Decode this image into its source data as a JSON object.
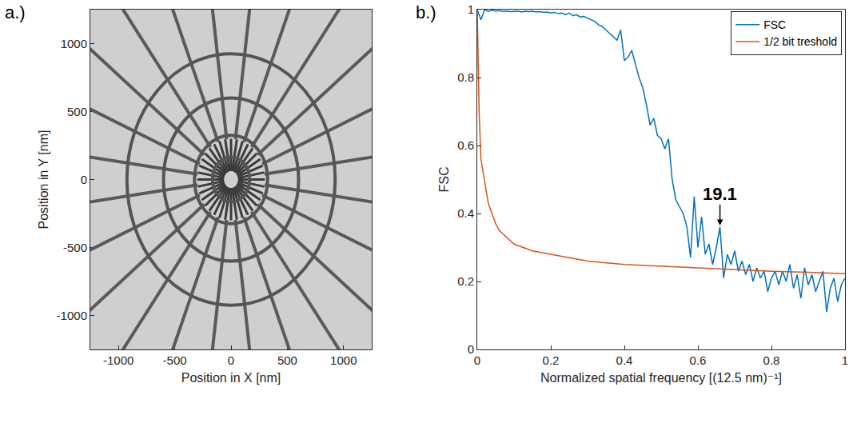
{
  "chart_data": [
    {
      "type": "image",
      "panel_label": "a.)",
      "x_label": "Position in X [nm]",
      "y_label": "Position in Y [nm]",
      "xlim": [
        -1250,
        1250
      ],
      "ylim": [
        -1250,
        1250
      ],
      "xticks": [
        -1000,
        -500,
        0,
        500,
        1000
      ],
      "yticks": [
        -1000,
        -500,
        0,
        500,
        1000
      ],
      "grid": false
    },
    {
      "type": "line",
      "panel_label": "b.)",
      "x_label": "Normalized spatial frequency [(12.5 nm)⁻¹]",
      "y_label": "FSC",
      "xlim": [
        0,
        1
      ],
      "ylim": [
        0,
        1
      ],
      "xticks": [
        0,
        0.2,
        0.4,
        0.6,
        0.8,
        1
      ],
      "yticks": [
        0,
        0.2,
        0.4,
        0.6,
        0.8,
        1
      ],
      "grid": false,
      "legend": "upper right",
      "series": [
        {
          "name": "FSC",
          "color": "#0072bd",
          "x": [
            0,
            0.01,
            0.02,
            0.03,
            0.04,
            0.05,
            0.06,
            0.07,
            0.08,
            0.09,
            0.1,
            0.11,
            0.12,
            0.13,
            0.14,
            0.15,
            0.16,
            0.17,
            0.18,
            0.19,
            0.2,
            0.21,
            0.22,
            0.23,
            0.24,
            0.25,
            0.26,
            0.27,
            0.28,
            0.29,
            0.3,
            0.31,
            0.32,
            0.33,
            0.34,
            0.35,
            0.36,
            0.37,
            0.38,
            0.39,
            0.4,
            0.41,
            0.42,
            0.43,
            0.44,
            0.45,
            0.46,
            0.47,
            0.48,
            0.49,
            0.5,
            0.51,
            0.52,
            0.53,
            0.54,
            0.55,
            0.56,
            0.57,
            0.58,
            0.59,
            0.6,
            0.61,
            0.62,
            0.63,
            0.64,
            0.65,
            0.66,
            0.67,
            0.68,
            0.69,
            0.7,
            0.71,
            0.72,
            0.73,
            0.74,
            0.75,
            0.76,
            0.77,
            0.78,
            0.79,
            0.8,
            0.81,
            0.82,
            0.83,
            0.84,
            0.85,
            0.86,
            0.87,
            0.88,
            0.89,
            0.9,
            0.91,
            0.92,
            0.93,
            0.94,
            0.95,
            0.96,
            0.97,
            0.98,
            0.99,
            1
          ],
          "values": [
            1.0,
            0.97,
            1.0,
            0.995,
            0.998,
            0.996,
            0.997,
            0.995,
            0.996,
            0.994,
            0.995,
            0.996,
            0.993,
            0.995,
            0.994,
            0.995,
            0.993,
            0.994,
            0.992,
            0.993,
            0.99,
            0.992,
            0.988,
            0.99,
            0.985,
            0.99,
            0.982,
            0.985,
            0.978,
            0.98,
            0.975,
            0.97,
            0.965,
            0.955,
            0.95,
            0.94,
            0.93,
            0.92,
            0.91,
            0.94,
            0.85,
            0.86,
            0.88,
            0.84,
            0.8,
            0.77,
            0.72,
            0.66,
            0.68,
            0.63,
            0.62,
            0.59,
            0.62,
            0.5,
            0.44,
            0.42,
            0.4,
            0.36,
            0.27,
            0.45,
            0.3,
            0.39,
            0.28,
            0.31,
            0.25,
            0.3,
            0.36,
            0.21,
            0.28,
            0.25,
            0.29,
            0.23,
            0.26,
            0.22,
            0.25,
            0.2,
            0.24,
            0.21,
            0.23,
            0.17,
            0.21,
            0.23,
            0.19,
            0.23,
            0.2,
            0.25,
            0.18,
            0.22,
            0.15,
            0.24,
            0.19,
            0.22,
            0.17,
            0.2,
            0.23,
            0.11,
            0.18,
            0.21,
            0.14,
            0.19,
            0.21
          ]
        },
        {
          "name": "1/2 bit treshold",
          "color": "#d95319",
          "x": [
            0,
            0.005,
            0.01,
            0.02,
            0.03,
            0.04,
            0.05,
            0.06,
            0.08,
            0.1,
            0.15,
            0.2,
            0.3,
            0.4,
            0.5,
            0.6,
            0.7,
            0.8,
            0.9,
            1
          ],
          "values": [
            1.0,
            0.7,
            0.56,
            0.49,
            0.43,
            0.4,
            0.37,
            0.35,
            0.33,
            0.31,
            0.29,
            0.28,
            0.26,
            0.25,
            0.245,
            0.24,
            0.235,
            0.23,
            0.227,
            0.223
          ]
        }
      ],
      "annotations": [
        {
          "text": "19.1",
          "x": 0.66,
          "y": 0.36
        }
      ]
    }
  ]
}
